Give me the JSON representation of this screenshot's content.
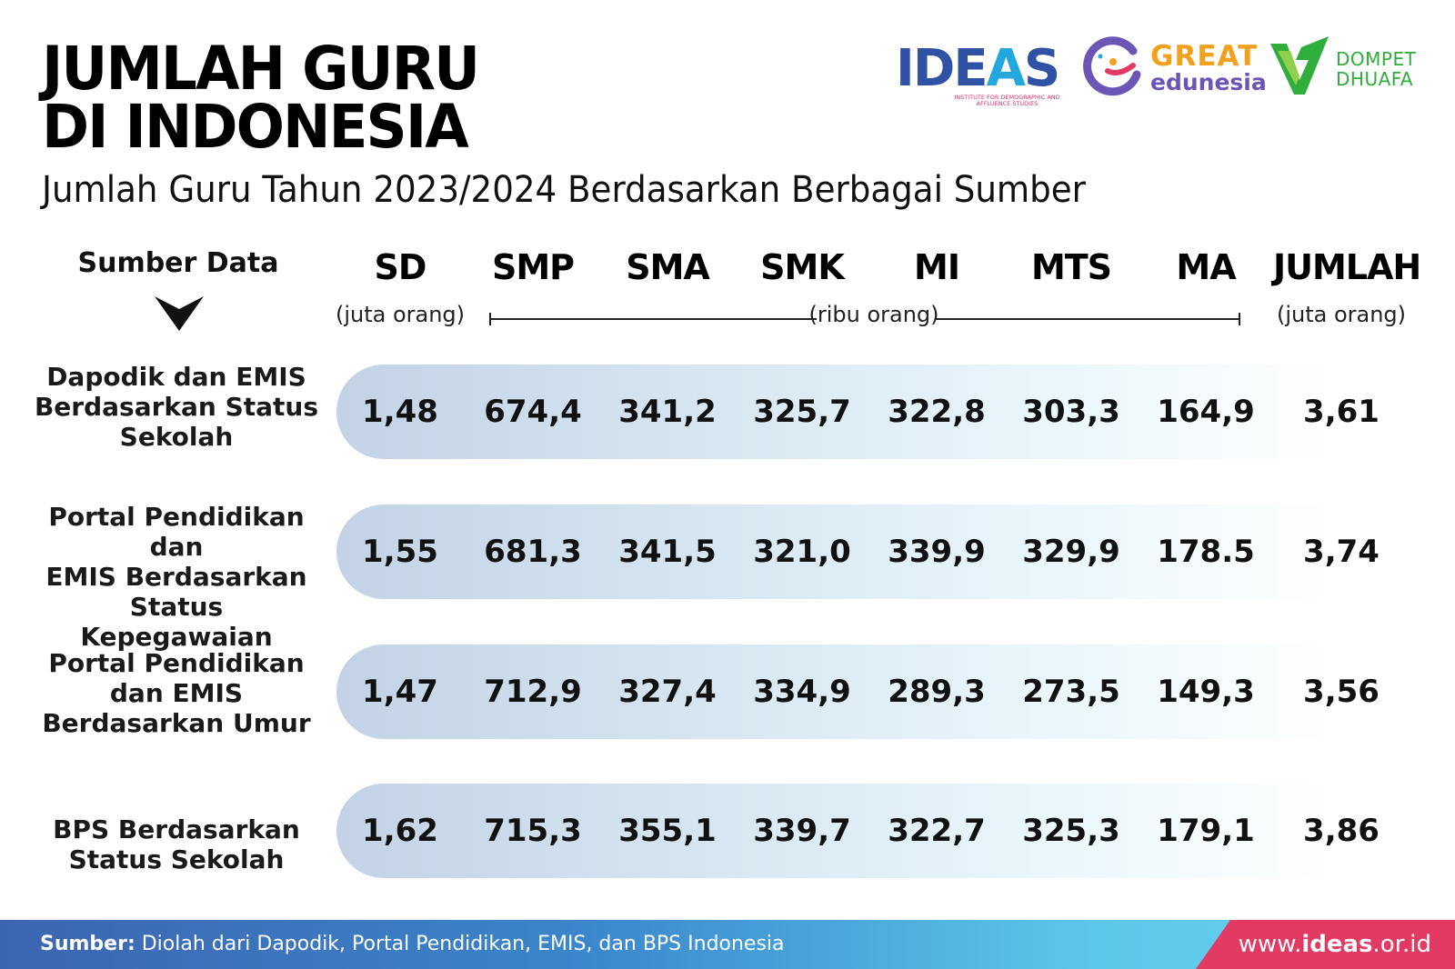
{
  "title_line1": "JUMLAH GURU",
  "title_line2": "DI INDONESIA",
  "subtitle": "Jumlah Guru Tahun 2023/2024 Berdasarkan Berbagai Sumber",
  "logos": {
    "ideas": {
      "word_left": "IDE",
      "word_a": "A",
      "word_right": "S",
      "sub": "INSTITUTE FOR DEMOGRAPHIC AND AFFLUENCE STUDIES",
      "color": "#2f52a4"
    },
    "great": {
      "word": "GREAT",
      "edu": "edunesia",
      "color": "#f2a11f"
    },
    "dompet": {
      "line1": "DOMPET",
      "line2": "DHUAFA",
      "color": "#2fae3b"
    }
  },
  "table": {
    "source_header": "Sumber Data",
    "columns": [
      "SD",
      "SMP",
      "SMA",
      "SMK",
      "MI",
      "MTS",
      "MA",
      "JUMLAH"
    ],
    "units": {
      "sd": "(juta orang)",
      "middle": "(ribu orang)",
      "total": "(juta orang)"
    }
  },
  "chart_data": {
    "type": "table",
    "title": "JUMLAH GURU DI INDONESIA",
    "subtitle": "Jumlah Guru Tahun 2023/2024 Berdasarkan Berbagai Sumber",
    "columns": [
      "SD",
      "SMP",
      "SMA",
      "SMK",
      "MI",
      "MTS",
      "MA",
      "JUMLAH"
    ],
    "rows": [
      {
        "source": "Dapodik dan EMIS Berdasarkan Status Sekolah",
        "label_lines": [
          "Dapodik dan EMIS",
          "Berdasarkan Status",
          "Sekolah"
        ],
        "values": [
          "1,48",
          "674,4",
          "341,2",
          "325,7",
          "322,8",
          "303,3",
          "164,9",
          "3,61"
        ]
      },
      {
        "source": "Portal Pendidikan dan EMIS Berdasarkan Status Kepegawaian",
        "label_lines": [
          "Portal Pendidikan dan",
          "EMIS Berdasarkan",
          "Status Kepegawaian"
        ],
        "values": [
          "1,55",
          "681,3",
          "341,5",
          "321,0",
          "339,9",
          "329,9",
          "178.5",
          "3,74"
        ]
      },
      {
        "source": "Portal Pendidikan dan EMIS Berdasarkan Umur",
        "label_lines": [
          "Portal Pendidikan",
          "dan EMIS",
          "Berdasarkan Umur"
        ],
        "values": [
          "1,47",
          "712,9",
          "327,4",
          "334,9",
          "289,3",
          "273,5",
          "149,3",
          "3,56"
        ]
      },
      {
        "source": "BPS Berdasarkan Status Sekolah",
        "label_lines": [
          "BPS Berdasarkan",
          "Status Sekolah"
        ],
        "values": [
          "1,62",
          "715,3",
          "355,1",
          "339,7",
          "322,7",
          "325,3",
          "179,1",
          "3,86"
        ]
      }
    ]
  },
  "footer": {
    "source_label": "Sumber:",
    "source_text": " Diolah dari Dapodik, Portal Pendidikan, EMIS, dan BPS Indonesia",
    "url_prefix": "www.",
    "url_bold": "ideas",
    "url_suffix": ".or.id",
    "colors": {
      "blue": "#3c65b0",
      "cyan": "#6ad2f0",
      "red": "#e23a63"
    }
  }
}
